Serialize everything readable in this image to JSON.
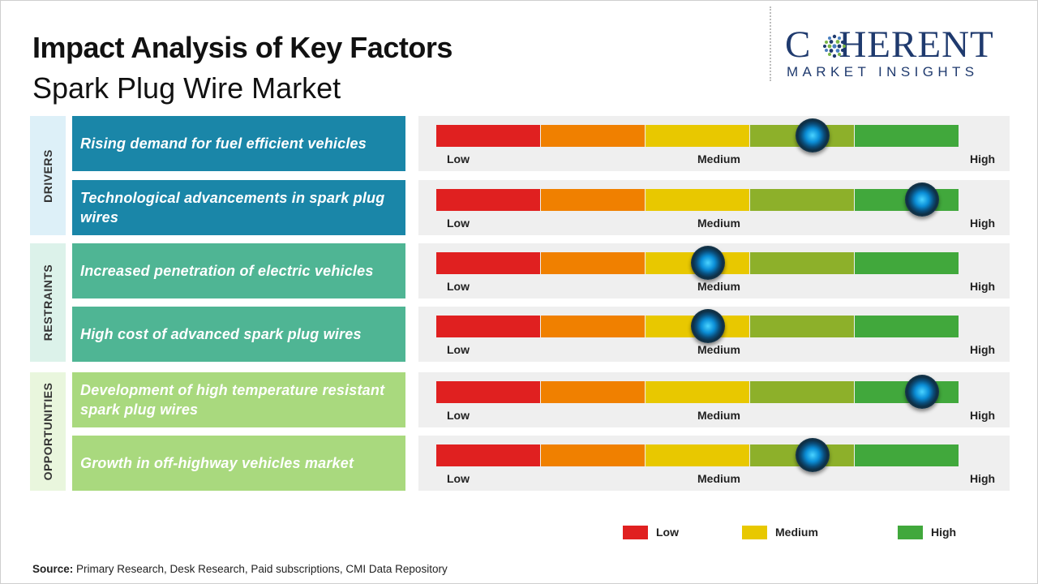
{
  "title": "Impact Analysis of Key Factors",
  "subtitle": "Spark Plug Wire Market",
  "logo": {
    "word": "COHERENT",
    "tagline": "MARKET INSIGHTS"
  },
  "colors": {
    "seg_low": "#e02020",
    "seg_low_mid": "#f08000",
    "seg_mid": "#e8c800",
    "seg_mid_high": "#8db02a",
    "seg_high": "#41a83c",
    "drivers": "#1a86a8",
    "drivers_bg": "#ddf0f8",
    "restraints": "#4fb594",
    "restraints_bg": "#dcf2ea",
    "opportunities": "#a9d97e",
    "opportunities_bg": "#e9f6dd"
  },
  "chart_data": {
    "type": "impact-gauge",
    "scale_labels": [
      "Low",
      "Medium",
      "High"
    ],
    "categories": [
      {
        "name": "DRIVERS",
        "color_key": "drivers",
        "factors": [
          {
            "label": "Rising demand for fuel efficient vehicles",
            "impact": 0.72
          },
          {
            "label": "Technological advancements in spark plug wires",
            "impact": 0.93
          }
        ]
      },
      {
        "name": "RESTRAINTS",
        "color_key": "restraints",
        "factors": [
          {
            "label": "Increased penetration of electric vehicles",
            "impact": 0.52
          },
          {
            "label": "High cost of advanced spark plug wires",
            "impact": 0.52
          }
        ]
      },
      {
        "name": "OPPORTUNITIES",
        "color_key": "opportunities",
        "factors": [
          {
            "label": "Development of high temperature resistant spark plug wires",
            "impact": 0.93
          },
          {
            "label": "Growth in off-highway vehicles market",
            "impact": 0.72
          }
        ]
      }
    ],
    "legend": [
      {
        "label": "Low",
        "color_key": "seg_low"
      },
      {
        "label": "Medium",
        "color_key": "seg_mid"
      },
      {
        "label": "High",
        "color_key": "seg_high"
      }
    ]
  },
  "source": {
    "label": "Source:",
    "text": "Primary Research, Desk Research, Paid subscriptions, CMI Data Repository"
  }
}
